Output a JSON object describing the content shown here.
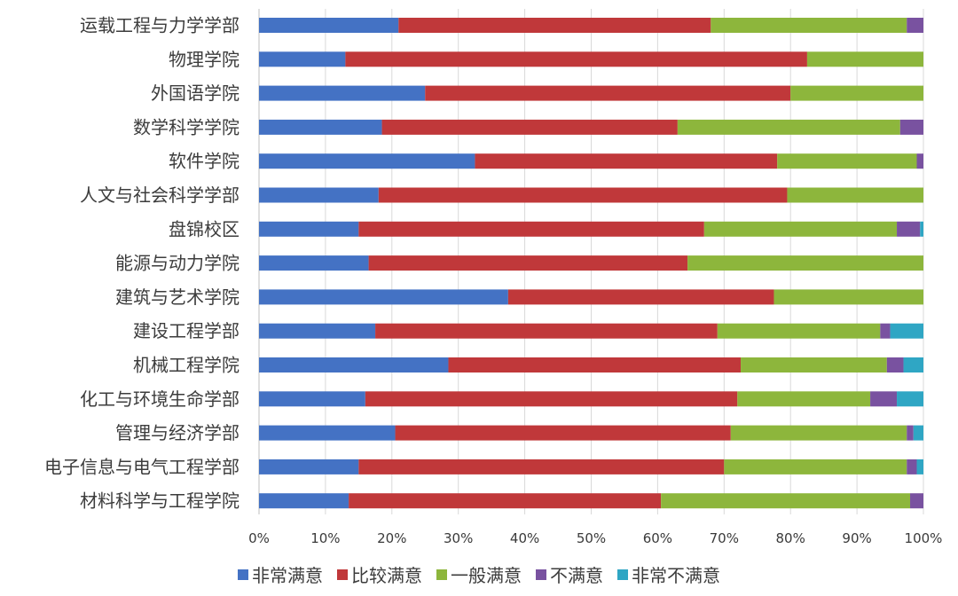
{
  "chart_data": {
    "type": "bar",
    "orientation": "horizontal",
    "stacked": true,
    "title": "",
    "xlabel": "",
    "ylabel": "",
    "xlim": [
      0,
      100
    ],
    "x_tick_labels": [
      "0%",
      "10%",
      "20%",
      "30%",
      "40%",
      "50%",
      "60%",
      "70%",
      "80%",
      "90%",
      "100%"
    ],
    "grid": true,
    "legend_position": "bottom",
    "categories": [
      "运载工程与力学学部",
      "物理学院",
      "外国语学院",
      "数学科学学院",
      "软件学院",
      "人文与社会科学学部",
      "盘锦校区",
      "能源与动力学院",
      "建筑与艺术学院",
      "建设工程学部",
      "机械工程学院",
      "化工与环境生命学部",
      "管理与经济学部",
      "电子信息与电气工程学部",
      "材料科学与工程学院"
    ],
    "series": [
      {
        "name": "非常满意",
        "color": "#4472c4",
        "values": [
          21,
          13,
          25,
          18.5,
          32.5,
          18,
          15,
          16.5,
          37.5,
          17.5,
          28.5,
          16,
          20.5,
          15,
          13.5
        ]
      },
      {
        "name": "比较满意",
        "color": "#c0383a",
        "values": [
          47,
          69.5,
          55,
          44.5,
          45.5,
          61.5,
          52,
          48,
          40,
          51.5,
          44,
          56,
          50.5,
          55,
          47
        ]
      },
      {
        "name": "一般满意",
        "color": "#8db63c",
        "values": [
          29.5,
          17.5,
          20,
          33.5,
          21,
          20.5,
          29,
          35.5,
          22.5,
          24.5,
          22,
          20,
          26.5,
          27.5,
          37.5
        ]
      },
      {
        "name": "不满意",
        "color": "#7952a0",
        "values": [
          2.5,
          0,
          0,
          3.5,
          1,
          0,
          3.5,
          0,
          0,
          1.5,
          2.5,
          4,
          1,
          1.5,
          2
        ]
      },
      {
        "name": "非常不满意",
        "color": "#2fa6c4",
        "values": [
          0,
          0,
          0,
          0,
          0,
          0,
          0.5,
          0,
          0,
          5,
          3,
          4,
          1.5,
          1,
          0
        ]
      }
    ]
  }
}
